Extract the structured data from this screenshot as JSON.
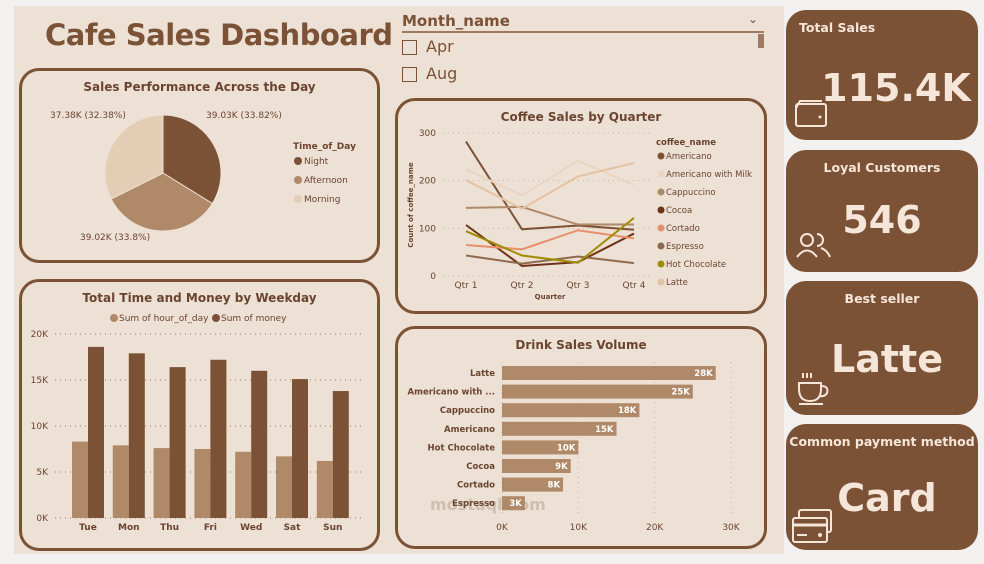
{
  "title": "Cafe Sales Dashboard",
  "watermark": "mostaql.com",
  "slicer": {
    "label": "Month_name",
    "options": [
      "Apr",
      "Aug"
    ]
  },
  "cards": [
    {
      "label": "Total Sales",
      "value": "115.4K",
      "icon": "wallet-icon"
    },
    {
      "label": "Loyal Customers",
      "value": "546",
      "icon": "users-icon"
    },
    {
      "label": "Best seller",
      "value": "Latte",
      "icon": "coffee-cup-icon"
    },
    {
      "label": "Common payment method",
      "value": "Card",
      "icon": "credit-card-icon"
    }
  ],
  "colors": {
    "dark": "#7b5236",
    "mid": "#b08968",
    "light": "#e3cdb5",
    "bg": "#ede0d4"
  },
  "chart_data": [
    {
      "type": "pie",
      "title": "Sales Performance Across the Day",
      "legend_title": "Time_of_Day",
      "legend": "right",
      "slices": [
        {
          "name": "Night",
          "value": 39.03,
          "label": "39.03K (33.82%)",
          "color": "#7b5236"
        },
        {
          "name": "Afternoon",
          "value": 39.02,
          "label": "39.02K (33.8%)",
          "color": "#b08968"
        },
        {
          "name": "Morning",
          "value": 37.38,
          "label": "37.38K (32.38%)",
          "color": "#e3cdb5"
        }
      ]
    },
    {
      "type": "bar",
      "title": "Total Time and Money by Weekday",
      "legend": "top",
      "grid": true,
      "categories": [
        "Tue",
        "Mon",
        "Thu",
        "Fri",
        "Wed",
        "Sat",
        "Sun"
      ],
      "yticks": [
        "0K",
        "5K",
        "10K",
        "15K",
        "20K"
      ],
      "ylim": [
        0,
        20000
      ],
      "series": [
        {
          "name": "Sum of hour_of_day",
          "color": "#b08968",
          "values": [
            8300,
            7900,
            7600,
            7500,
            7200,
            6700,
            6200
          ]
        },
        {
          "name": "Sum of money",
          "color": "#7b5236",
          "values": [
            18600,
            17900,
            16400,
            17200,
            16000,
            15100,
            13800
          ]
        }
      ]
    },
    {
      "type": "line",
      "title": "Coffee Sales by Quarter",
      "xlabel": "Quarter",
      "ylabel": "Count of coffee_name",
      "legend_title": "coffee_name",
      "legend": "right",
      "grid": true,
      "categories": [
        "Qtr 1",
        "Qtr 2",
        "Qtr 3",
        "Qtr 4"
      ],
      "yticks": [
        "0",
        "100",
        "200",
        "300"
      ],
      "ylim": [
        0,
        300
      ],
      "series": [
        {
          "name": "Americano",
          "color": "#7b5236",
          "values": [
            282,
            98,
            106,
            97
          ]
        },
        {
          "name": "Americano with Milk",
          "color": "#ead5c3",
          "values": [
            224,
            169,
            242,
            191
          ]
        },
        {
          "name": "Cappuccino",
          "color": "#b08968",
          "values": [
            143,
            145,
            108,
            108
          ]
        },
        {
          "name": "Cocoa",
          "color": "#6e3219",
          "values": [
            107,
            21,
            29,
            89
          ]
        },
        {
          "name": "Cortado",
          "color": "#e98f6b",
          "values": [
            65,
            56,
            96,
            79
          ]
        },
        {
          "name": "Espresso",
          "color": "#8e6a4e",
          "values": [
            43,
            26,
            41,
            27
          ]
        },
        {
          "name": "Hot Chocolate",
          "color": "#a08c00",
          "values": [
            94,
            43,
            28,
            122
          ]
        },
        {
          "name": "Latte",
          "color": "#e3c3a3",
          "values": [
            201,
            141,
            209,
            237
          ]
        }
      ]
    },
    {
      "type": "bar",
      "orientation": "horizontal",
      "title": "Drink Sales Volume",
      "grid": true,
      "categories": [
        "Latte",
        "Americano with ...",
        "Cappuccino",
        "Americano",
        "Hot Chocolate",
        "Cocoa",
        "Cortado",
        "Espresso"
      ],
      "values": [
        28000,
        25000,
        18000,
        15000,
        10000,
        9000,
        8000,
        3000
      ],
      "labels": [
        "28K",
        "25K",
        "18K",
        "15K",
        "10K",
        "9K",
        "8K",
        "3K"
      ],
      "xticks": [
        "0K",
        "10K",
        "20K",
        "30K"
      ],
      "xlim": [
        0,
        30000
      ],
      "color": "#b08968"
    }
  ]
}
